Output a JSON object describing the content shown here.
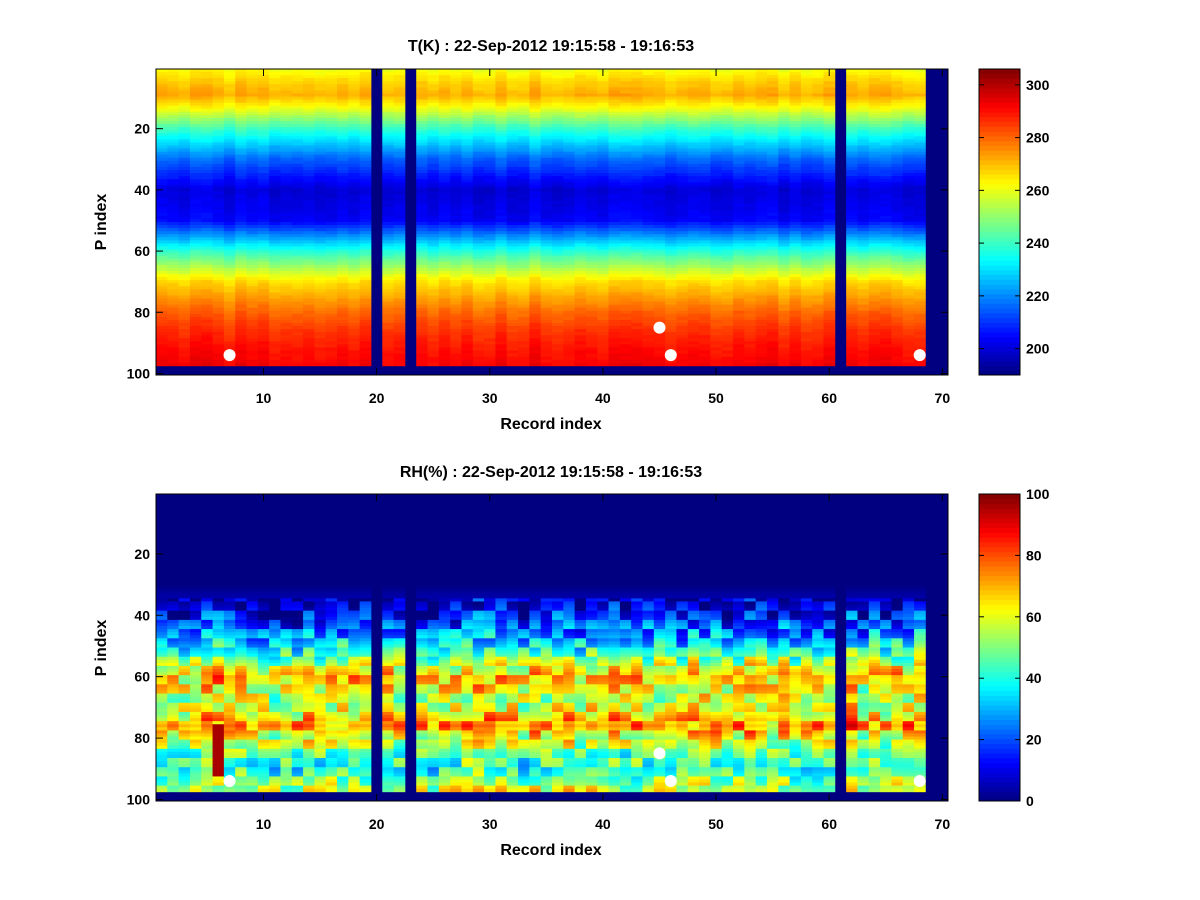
{
  "chart_data": [
    {
      "type": "heatmap",
      "title": "T(K) : 22-Sep-2012 19:15:58 - 19:16:53",
      "xlabel": "Record index",
      "ylabel": "P index",
      "xlim": [
        0.5,
        70.5
      ],
      "ylim": [
        0.5,
        100.5
      ],
      "y_reversed": true,
      "x_ticks": [
        "10",
        "20",
        "30",
        "40",
        "50",
        "60",
        "70"
      ],
      "y_ticks": [
        "20",
        "40",
        "60",
        "80",
        "100"
      ],
      "colormap": "jet",
      "color_range": [
        190,
        306
      ],
      "colorbar_ticks": [
        "200",
        "220",
        "240",
        "260",
        "280",
        "300"
      ],
      "records": 70,
      "levels": 100,
      "bottom_valid_level": 97,
      "gap_records": [
        20,
        23,
        61,
        69,
        70
      ],
      "profile": {
        "levels": [
          1,
          5,
          9,
          13,
          20,
          30,
          40,
          50,
          60,
          70,
          80,
          86,
          92,
          97
        ],
        "values": [
          262,
          268,
          272,
          262,
          240,
          216,
          200,
          204,
          238,
          266,
          280,
          286,
          290,
          292
        ]
      },
      "markers": [
        {
          "record": 7,
          "level": 94
        },
        {
          "record": 45,
          "level": 85
        },
        {
          "record": 46,
          "level": 94
        },
        {
          "record": 68,
          "level": 94
        }
      ]
    },
    {
      "type": "heatmap",
      "title": "RH(%) : 22-Sep-2012 19:15:58 - 19:16:53",
      "xlabel": "Record index",
      "ylabel": "P index",
      "xlim": [
        0.5,
        70.5
      ],
      "ylim": [
        0.5,
        100.5
      ],
      "y_reversed": true,
      "x_ticks": [
        "10",
        "20",
        "30",
        "40",
        "50",
        "60",
        "70"
      ],
      "y_ticks": [
        "20",
        "40",
        "60",
        "80",
        "100"
      ],
      "colormap": "jet",
      "color_range": [
        0,
        100
      ],
      "colorbar_ticks": [
        "0",
        "20",
        "40",
        "60",
        "80",
        "100"
      ],
      "records": 70,
      "levels": 100,
      "bottom_valid_level": 97,
      "gap_records": [
        20,
        23,
        61,
        69,
        70
      ],
      "profile": {
        "levels": [
          1,
          30,
          36,
          42,
          48,
          53,
          57,
          60,
          64,
          68,
          72,
          76,
          80,
          85,
          90,
          94,
          97
        ],
        "values": [
          0,
          0,
          6,
          16,
          30,
          45,
          60,
          68,
          62,
          56,
          62,
          74,
          60,
          48,
          42,
          50,
          58
        ]
      },
      "hot_column": {
        "record": 6,
        "from_level": 76,
        "to_level": 92,
        "value": 96
      },
      "markers": [
        {
          "record": 7,
          "level": 94
        },
        {
          "record": 45,
          "level": 85
        },
        {
          "record": 46,
          "level": 94
        },
        {
          "record": 68,
          "level": 94
        }
      ]
    }
  ]
}
